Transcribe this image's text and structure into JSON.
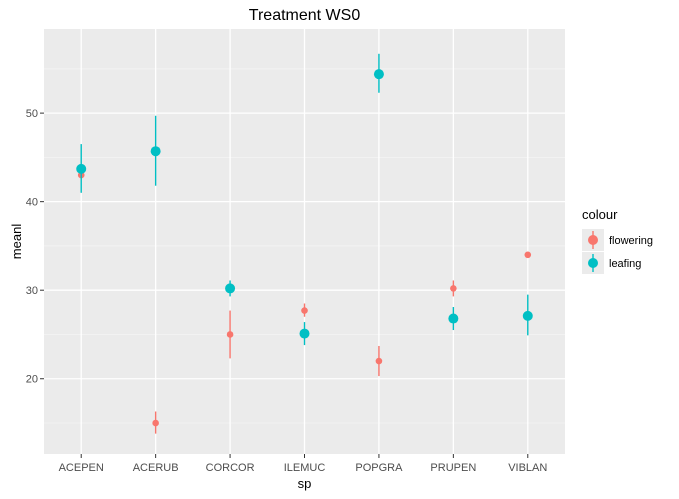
{
  "chart_data": {
    "type": "scatter",
    "title": "Treatment WS0",
    "xlabel": "sp",
    "ylabel": "meanl",
    "categories": [
      "ACEPEN",
      "ACERUB",
      "CORCOR",
      "ILEMUC",
      "POPGRA",
      "PRUPEN",
      "VIBLAN"
    ],
    "ylim": [
      11.5,
      59.5
    ],
    "yticks": [
      20,
      30,
      40,
      50
    ],
    "grid": true,
    "legend": {
      "title": "colour",
      "position": "right",
      "entries": [
        "flowering",
        "leafing"
      ]
    },
    "series": [
      {
        "name": "flowering",
        "color": "#F8766D",
        "values": [
          43.0,
          15.0,
          25.0,
          27.7,
          22.0,
          30.2,
          34.0
        ],
        "lower": [
          43.0,
          13.8,
          22.3,
          27.0,
          20.3,
          29.3,
          34.0
        ],
        "upper": [
          43.0,
          16.3,
          27.7,
          28.5,
          23.7,
          31.1,
          34.0
        ]
      },
      {
        "name": "leafing",
        "color": "#00BFC4",
        "values": [
          43.7,
          45.7,
          30.2,
          25.1,
          54.4,
          26.8,
          27.1
        ],
        "lower": [
          41.0,
          41.8,
          29.3,
          23.8,
          52.3,
          25.5,
          24.9
        ],
        "upper": [
          46.5,
          49.7,
          31.1,
          26.4,
          56.7,
          28.1,
          29.5
        ]
      }
    ]
  }
}
